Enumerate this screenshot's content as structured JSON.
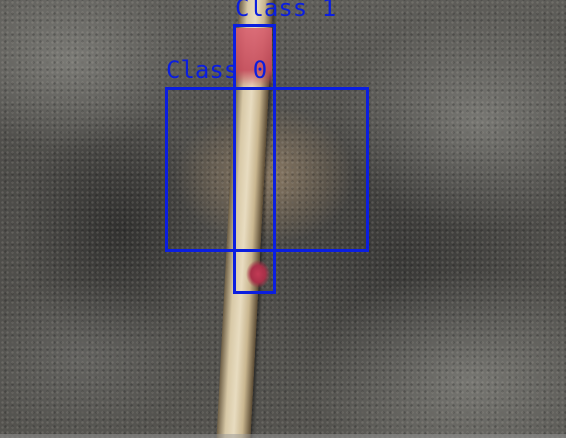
{
  "image": {
    "description_free": true
  },
  "detections": [
    {
      "label": "Class 1",
      "box_color": "#0b1ee0"
    },
    {
      "label": "Class 0",
      "box_color": "#0b1ee0"
    }
  ]
}
